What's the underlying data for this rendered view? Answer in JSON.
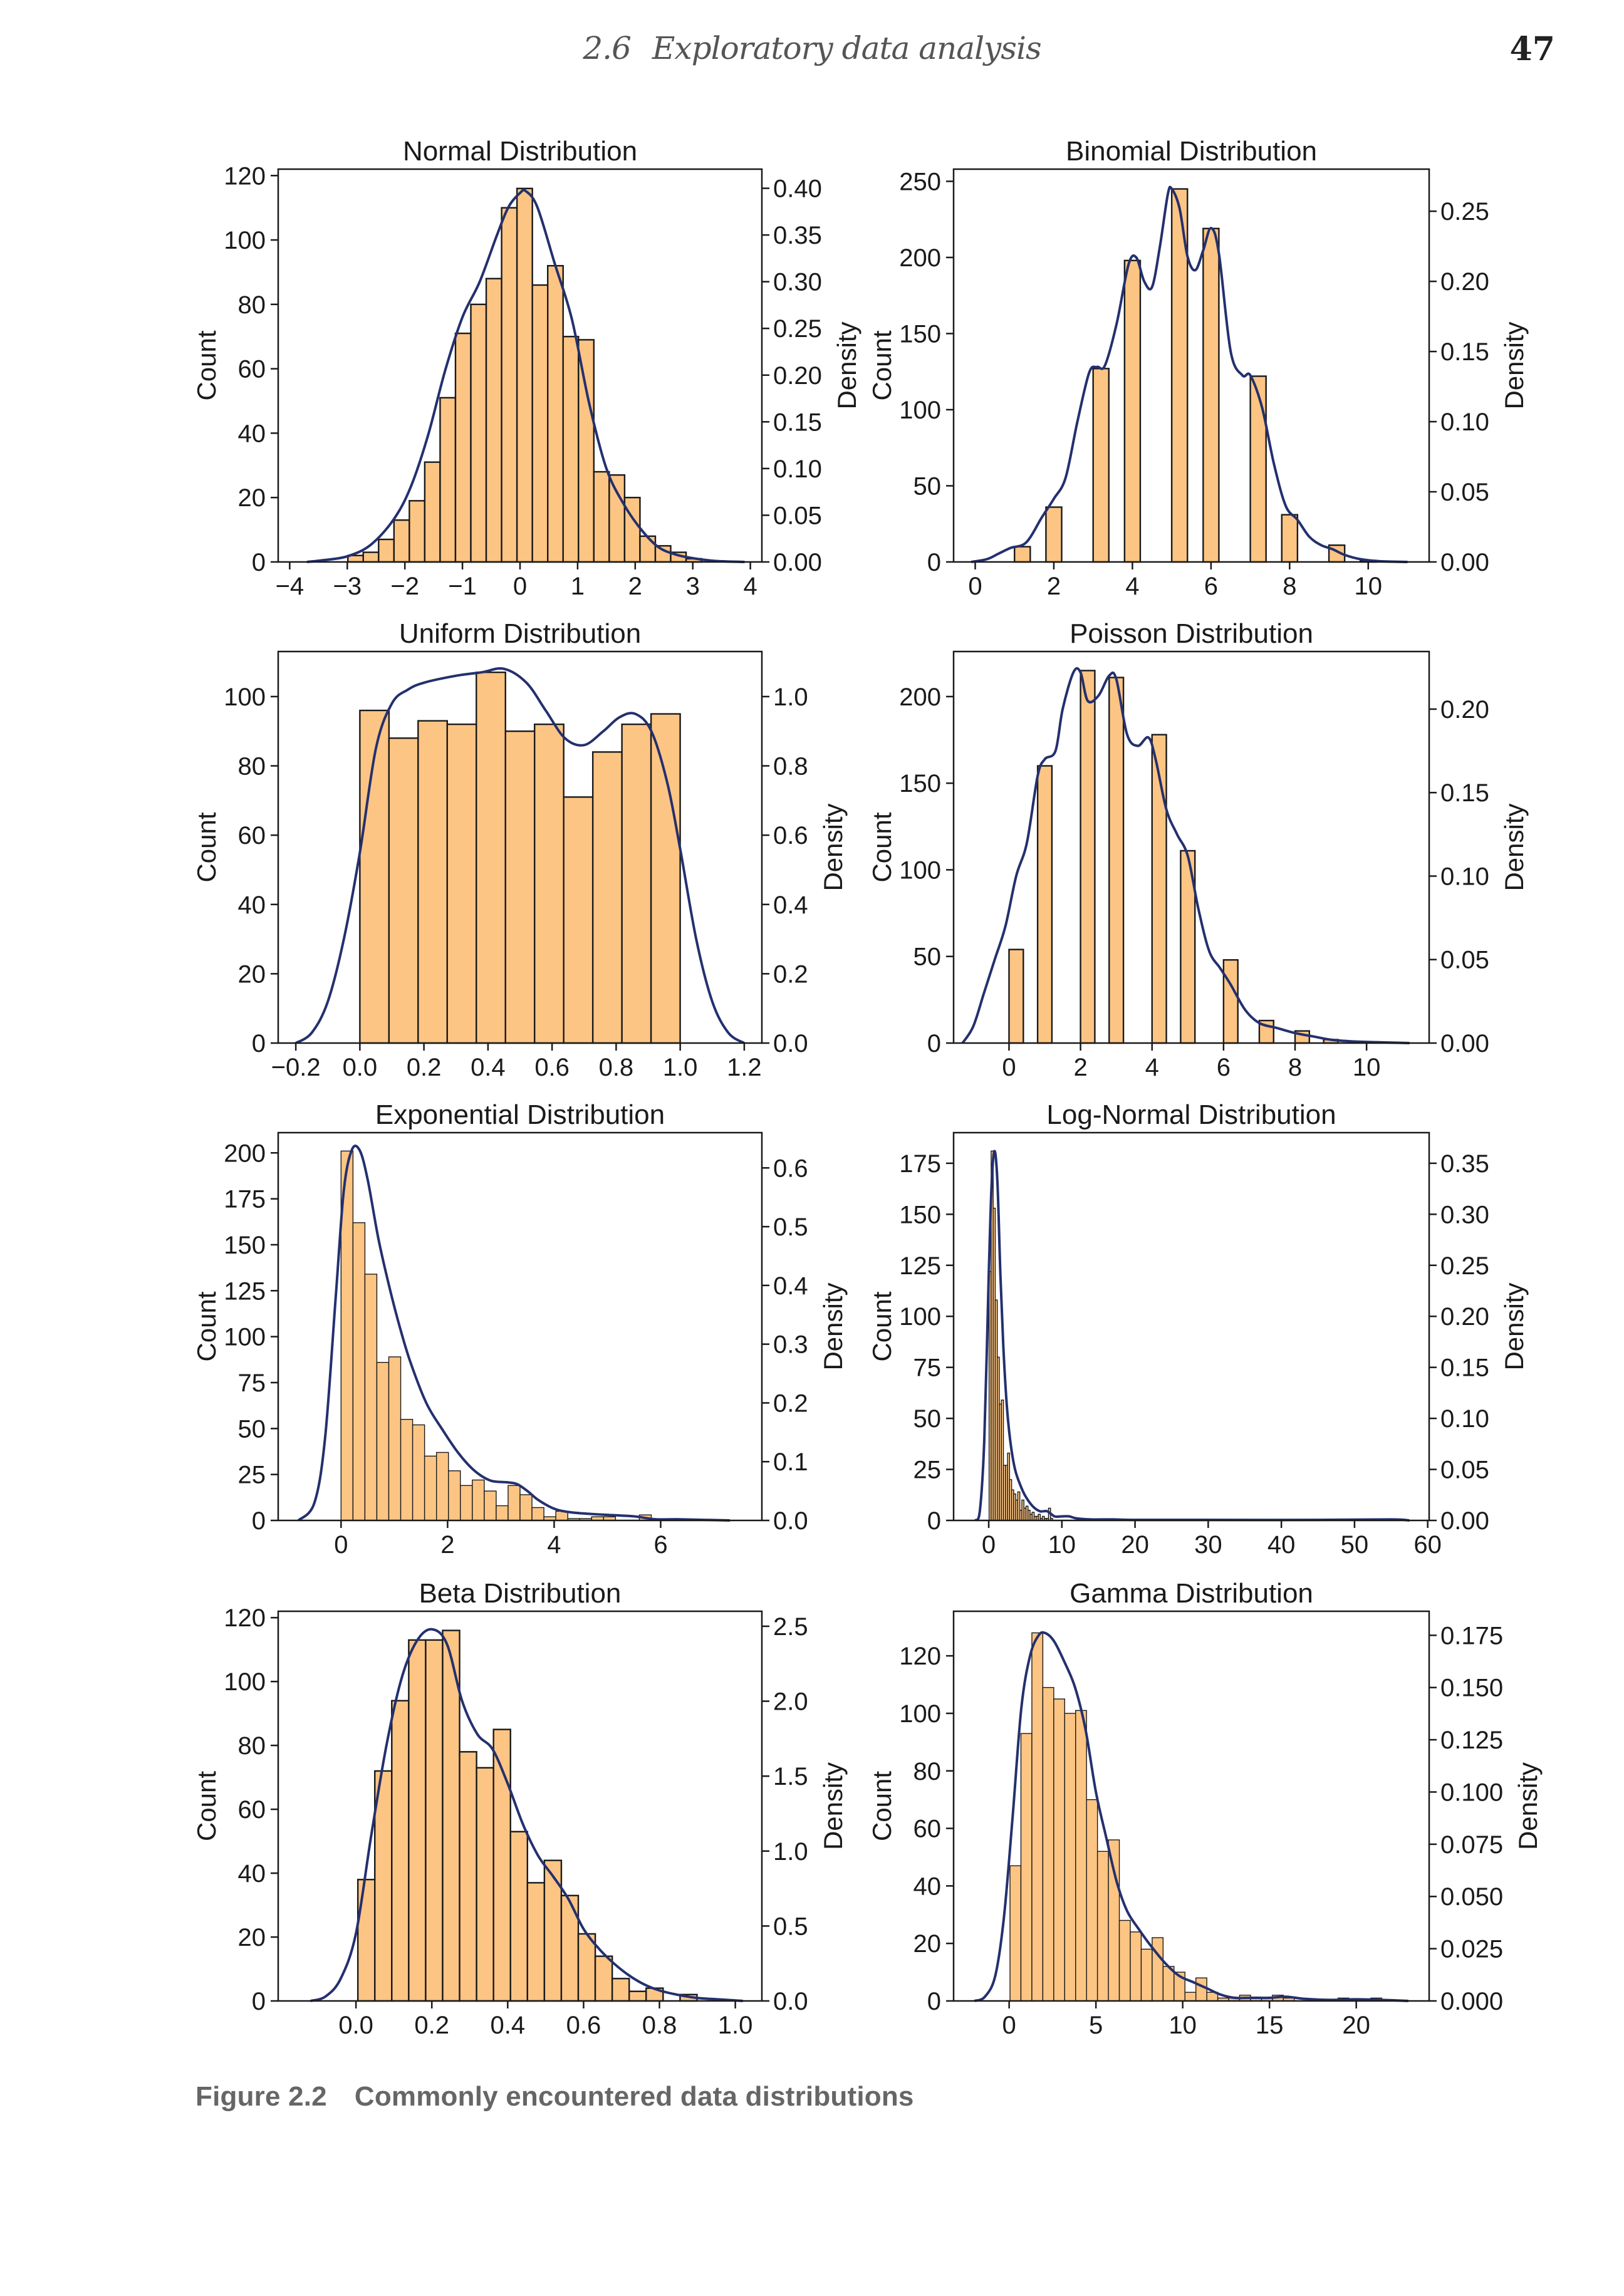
{
  "header": {
    "section_number": "2.6",
    "section_title": "Exploratory data analysis",
    "page_number": "47"
  },
  "caption": {
    "figure_label": "Figure 2.2",
    "text": "Commonly encountered data distributions"
  },
  "colors": {
    "bar_fill": "#fdc584",
    "bar_edge": "#1a1a1a",
    "kde_line": "#24306e"
  },
  "chart_data": [
    {
      "type": "bar",
      "title": "Normal Distribution",
      "xlabel": "",
      "ylabel": "Count",
      "y2label": "Density",
      "xlim": [
        -4.2,
        4.2
      ],
      "ylim": [
        0,
        122
      ],
      "y2lim": [
        0,
        0.4205
      ],
      "xticks": [
        -4,
        -3,
        -2,
        -1,
        0,
        1,
        2,
        3,
        4
      ],
      "xticklabels": [
        "−4",
        "−3",
        "−2",
        "−1",
        "0",
        "1",
        "2",
        "3",
        "4"
      ],
      "yticks": [
        0,
        20,
        40,
        60,
        80,
        100,
        120
      ],
      "y2ticks": [
        0.0,
        0.05,
        0.1,
        0.15,
        0.2,
        0.25,
        0.3,
        0.35,
        0.4
      ],
      "y2ticklabels": [
        "0.00",
        "0.05",
        "0.10",
        "0.15",
        "0.20",
        "0.25",
        "0.30",
        "0.35",
        "0.40"
      ],
      "bin_start": -2.99,
      "bin_width": 0.267,
      "counts": [
        2,
        3,
        7,
        13,
        19,
        31,
        51,
        71,
        80,
        88,
        110,
        116,
        86,
        92,
        70,
        69,
        28,
        27,
        20,
        8,
        5,
        3,
        1
      ],
      "kde": {
        "x": [
          -3.7,
          -3.4,
          -3.0,
          -2.6,
          -2.2,
          -1.9,
          -1.6,
          -1.3,
          -1.0,
          -0.7,
          -0.4,
          -0.2,
          0.0,
          0.1,
          0.3,
          0.6,
          0.9,
          1.2,
          1.5,
          1.8,
          2.1,
          2.4,
          2.7,
          3.0,
          3.4,
          3.9
        ],
        "y": [
          0.0,
          0.002,
          0.006,
          0.018,
          0.045,
          0.08,
          0.135,
          0.205,
          0.262,
          0.3,
          0.35,
          0.38,
          0.395,
          0.397,
          0.38,
          0.32,
          0.26,
          0.17,
          0.1,
          0.062,
          0.035,
          0.016,
          0.008,
          0.004,
          0.001,
          0.0
        ]
      }
    },
    {
      "type": "bar",
      "title": "Binomial Distribution",
      "xlabel": "",
      "ylabel": "Count",
      "y2label": "Density",
      "xlim": [
        -0.55,
        11.55
      ],
      "ylim": [
        0,
        258
      ],
      "y2lim": [
        0,
        0.28
      ],
      "xticks": [
        0,
        2,
        4,
        6,
        8,
        10
      ],
      "xticklabels": [
        "0",
        "2",
        "4",
        "6",
        "8",
        "10"
      ],
      "yticks": [
        0,
        50,
        100,
        150,
        200,
        250
      ],
      "y2ticks": [
        0.0,
        0.05,
        0.1,
        0.15,
        0.2,
        0.25
      ],
      "y2ticklabels": [
        "0.00",
        "0.05",
        "0.10",
        "0.15",
        "0.20",
        "0.25"
      ],
      "bin_width": 0.4,
      "bins": [
        {
          "x": 1.0,
          "count": 10
        },
        {
          "x": 1.8,
          "count": 36
        },
        {
          "x": 3.0,
          "count": 127
        },
        {
          "x": 3.8,
          "count": 198
        },
        {
          "x": 5.0,
          "count": 245
        },
        {
          "x": 5.8,
          "count": 219
        },
        {
          "x": 7.0,
          "count": 122
        },
        {
          "x": 7.8,
          "count": 31
        },
        {
          "x": 9.0,
          "count": 11
        },
        {
          "x": 9.8,
          "count": 1
        }
      ],
      "kde": {
        "x": [
          -0.1,
          0.3,
          0.6,
          0.9,
          1.3,
          1.7,
          2.0,
          2.3,
          2.6,
          2.9,
          3.1,
          3.3,
          3.6,
          3.9,
          4.1,
          4.3,
          4.5,
          4.7,
          4.9,
          5.0,
          5.2,
          5.4,
          5.6,
          5.8,
          6.0,
          6.2,
          6.5,
          6.8,
          7.0,
          7.3,
          7.6,
          7.9,
          8.2,
          8.5,
          8.8,
          9.1,
          9.4,
          9.8,
          10.3,
          11.0
        ],
        "y": [
          0.0,
          0.002,
          0.006,
          0.01,
          0.014,
          0.032,
          0.045,
          0.06,
          0.1,
          0.135,
          0.139,
          0.14,
          0.17,
          0.212,
          0.217,
          0.2,
          0.196,
          0.225,
          0.262,
          0.266,
          0.252,
          0.218,
          0.208,
          0.222,
          0.238,
          0.22,
          0.15,
          0.133,
          0.133,
          0.11,
          0.07,
          0.04,
          0.03,
          0.018,
          0.012,
          0.009,
          0.005,
          0.002,
          0.0005,
          0.0
        ]
      }
    },
    {
      "type": "bar",
      "title": "Uniform Distribution",
      "xlabel": "",
      "ylabel": "Count",
      "y2label": "Density",
      "xlim": [
        -0.255,
        1.255
      ],
      "ylim": [
        0,
        113
      ],
      "y2lim": [
        0,
        1.13
      ],
      "xticks": [
        -0.2,
        0.0,
        0.2,
        0.4,
        0.6,
        0.8,
        1.0,
        1.2
      ],
      "xticklabels": [
        "−0.2",
        "0.0",
        "0.2",
        "0.4",
        "0.6",
        "0.8",
        "1.0",
        "1.2"
      ],
      "yticks": [
        0,
        20,
        40,
        60,
        80,
        100
      ],
      "y2ticks": [
        0.0,
        0.2,
        0.4,
        0.6,
        0.8,
        1.0
      ],
      "y2ticklabels": [
        "0.0",
        "0.2",
        "0.4",
        "0.6",
        "0.8",
        "1.0"
      ],
      "bin_start": 0.0,
      "bin_width": 0.0909,
      "counts": [
        96,
        88,
        93,
        92,
        107,
        90,
        92,
        71,
        84,
        92,
        95
      ],
      "kde": {
        "x": [
          -0.2,
          -0.15,
          -0.1,
          -0.05,
          0.0,
          0.05,
          0.1,
          0.15,
          0.2,
          0.3,
          0.38,
          0.45,
          0.52,
          0.58,
          0.64,
          0.7,
          0.76,
          0.81,
          0.86,
          0.91,
          0.96,
          1.0,
          1.05,
          1.1,
          1.15,
          1.2
        ],
        "y": [
          0.0,
          0.03,
          0.12,
          0.3,
          0.55,
          0.85,
          0.98,
          1.02,
          1.04,
          1.06,
          1.07,
          1.08,
          1.04,
          0.96,
          0.88,
          0.86,
          0.9,
          0.94,
          0.95,
          0.9,
          0.75,
          0.56,
          0.3,
          0.12,
          0.03,
          0.0
        ]
      }
    },
    {
      "type": "bar",
      "title": "Poisson Distribution",
      "xlabel": "",
      "ylabel": "Count",
      "y2label": "Density",
      "xlim": [
        -1.55,
        11.75
      ],
      "ylim": [
        0,
        226
      ],
      "y2lim": [
        0,
        0.2345
      ],
      "xticks": [
        0,
        2,
        4,
        6,
        8,
        10
      ],
      "xticklabels": [
        "0",
        "2",
        "4",
        "6",
        "8",
        "10"
      ],
      "yticks": [
        0,
        50,
        100,
        150,
        200
      ],
      "y2ticks": [
        0.0,
        0.05,
        0.1,
        0.15,
        0.2
      ],
      "y2ticklabels": [
        "0.00",
        "0.05",
        "0.10",
        "0.15",
        "0.20"
      ],
      "bin_width": 0.4,
      "bins": [
        {
          "x": 0.0,
          "count": 54
        },
        {
          "x": 0.8,
          "count": 160
        },
        {
          "x": 2.0,
          "count": 215
        },
        {
          "x": 2.8,
          "count": 211
        },
        {
          "x": 4.0,
          "count": 178
        },
        {
          "x": 4.8,
          "count": 111
        },
        {
          "x": 6.0,
          "count": 48
        },
        {
          "x": 7.0,
          "count": 13
        },
        {
          "x": 8.0,
          "count": 7
        },
        {
          "x": 8.8,
          "count": 2
        }
      ],
      "kde": {
        "x": [
          -1.3,
          -1.0,
          -0.7,
          -0.4,
          -0.1,
          0.2,
          0.5,
          0.8,
          1.0,
          1.3,
          1.5,
          1.8,
          2.0,
          2.2,
          2.5,
          2.8,
          3.0,
          3.3,
          3.6,
          3.9,
          4.1,
          4.4,
          4.7,
          5.0,
          5.3,
          5.6,
          5.9,
          6.2,
          6.6,
          7.0,
          7.5,
          8.0,
          8.5,
          9.0,
          9.6,
          10.3,
          11.2
        ],
        "y": [
          0.0,
          0.01,
          0.03,
          0.05,
          0.07,
          0.1,
          0.12,
          0.16,
          0.17,
          0.175,
          0.2,
          0.222,
          0.222,
          0.205,
          0.208,
          0.22,
          0.218,
          0.185,
          0.178,
          0.183,
          0.17,
          0.14,
          0.125,
          0.112,
          0.08,
          0.055,
          0.045,
          0.035,
          0.02,
          0.012,
          0.009,
          0.006,
          0.004,
          0.002,
          0.001,
          0.0005,
          0.0
        ]
      }
    },
    {
      "type": "bar",
      "title": "Exponential Distribution",
      "xlabel": "",
      "ylabel": "Count",
      "y2label": "Density",
      "xlim": [
        -1.18,
        7.9
      ],
      "ylim": [
        0,
        211
      ],
      "y2lim": [
        0,
        0.66
      ],
      "xticks": [
        0,
        2,
        4,
        6
      ],
      "xticklabels": [
        "0",
        "2",
        "4",
        "6"
      ],
      "yticks": [
        0,
        25,
        50,
        75,
        100,
        125,
        150,
        175,
        200
      ],
      "y2ticks": [
        0.0,
        0.1,
        0.2,
        0.3,
        0.4,
        0.5,
        0.6
      ],
      "y2ticklabels": [
        "0.0",
        "0.1",
        "0.2",
        "0.3",
        "0.4",
        "0.5",
        "0.6"
      ],
      "bin_start": 0.0,
      "bin_width": 0.224,
      "counts": [
        201,
        162,
        134,
        86,
        89,
        55,
        52,
        35,
        37,
        27,
        19,
        22,
        16,
        8,
        19,
        14,
        7,
        2,
        5,
        1,
        1,
        2,
        2,
        0,
        0,
        3,
        0,
        0,
        0,
        0,
        0,
        0,
        0,
        0,
        0,
        0
      ],
      "kde": {
        "x": [
          -0.8,
          -0.5,
          -0.3,
          -0.1,
          0.05,
          0.2,
          0.35,
          0.5,
          0.7,
          0.9,
          1.1,
          1.3,
          1.6,
          1.9,
          2.2,
          2.5,
          2.8,
          3.1,
          3.3,
          3.5,
          3.7,
          4.0,
          4.3,
          4.7,
          5.1,
          5.5,
          5.9,
          6.3,
          6.8,
          7.3
        ],
        "y": [
          0.0,
          0.03,
          0.14,
          0.38,
          0.56,
          0.63,
          0.63,
          0.58,
          0.48,
          0.4,
          0.33,
          0.27,
          0.2,
          0.155,
          0.115,
          0.085,
          0.068,
          0.065,
          0.062,
          0.05,
          0.035,
          0.02,
          0.014,
          0.011,
          0.009,
          0.007,
          0.002,
          0.002,
          0.001,
          0.0
        ]
      }
    },
    {
      "type": "bar",
      "title": "Log-Normal Distribution",
      "xlabel": "",
      "ylabel": "Count",
      "y2label": "Density",
      "xlim": [
        -4.8,
        60.2
      ],
      "ylim": [
        0,
        190
      ],
      "y2lim": [
        0,
        0.38
      ],
      "xticks": [
        0,
        10,
        20,
        30,
        40,
        50,
        60
      ],
      "xticklabels": [
        "0",
        "10",
        "20",
        "30",
        "40",
        "50",
        "60"
      ],
      "yticks": [
        0,
        25,
        50,
        75,
        100,
        125,
        150,
        175
      ],
      "y2ticks": [
        0.0,
        0.05,
        0.1,
        0.15,
        0.2,
        0.25,
        0.3,
        0.35
      ],
      "y2ticklabels": [
        "0.00",
        "0.05",
        "0.10",
        "0.15",
        "0.20",
        "0.25",
        "0.30",
        "0.35"
      ],
      "bin_start": 0.05,
      "bin_width": 0.28,
      "counts": [
        122,
        181,
        153,
        108,
        80,
        57,
        59,
        27,
        27,
        33,
        20,
        15,
        13,
        10,
        14,
        5,
        10,
        6,
        7,
        5,
        3,
        4,
        2,
        2,
        3,
        1,
        2,
        1,
        1,
        6,
        1
      ],
      "kde": {
        "x": [
          -1.8,
          -1.2,
          -0.6,
          0.0,
          0.4,
          0.8,
          1.2,
          1.6,
          2.0,
          2.5,
          3.0,
          3.6,
          4.3,
          5.0,
          6.0,
          7.0,
          8.0,
          9.0,
          10.0,
          11.0,
          12.0,
          14.0,
          17.0,
          20.0,
          30.0,
          45.0,
          55.0,
          57.5
        ],
        "y": [
          0.0,
          0.01,
          0.08,
          0.24,
          0.33,
          0.362,
          0.33,
          0.24,
          0.17,
          0.11,
          0.075,
          0.05,
          0.035,
          0.024,
          0.014,
          0.009,
          0.009,
          0.004,
          0.004,
          0.004,
          0.002,
          0.001,
          0.001,
          0.0005,
          0.0005,
          0.0005,
          0.001,
          0.0
        ]
      }
    },
    {
      "type": "bar",
      "title": "Beta Distribution",
      "xlabel": "",
      "ylabel": "Count",
      "y2label": "Density",
      "xlim": [
        -0.205,
        1.07
      ],
      "ylim": [
        0,
        122
      ],
      "y2lim": [
        0,
        2.6
      ],
      "xticks": [
        0.0,
        0.2,
        0.4,
        0.6,
        0.8,
        1.0
      ],
      "xticklabels": [
        "0.0",
        "0.2",
        "0.4",
        "0.6",
        "0.8",
        "1.0"
      ],
      "yticks": [
        0,
        20,
        40,
        60,
        80,
        100,
        120
      ],
      "y2ticks": [
        0.0,
        0.5,
        1.0,
        1.5,
        2.0,
        2.5
      ],
      "y2ticklabels": [
        "0.0",
        "0.5",
        "1.0",
        "1.5",
        "2.0",
        "2.5"
      ],
      "bin_start": 0.005,
      "bin_width": 0.0447,
      "counts": [
        38,
        72,
        94,
        113,
        113,
        116,
        78,
        73,
        85,
        53,
        37,
        44,
        33,
        21,
        14,
        7,
        3,
        4,
        0,
        2
      ],
      "kde": {
        "x": [
          -0.12,
          -0.08,
          -0.04,
          0.0,
          0.04,
          0.08,
          0.12,
          0.16,
          0.2,
          0.24,
          0.28,
          0.32,
          0.36,
          0.4,
          0.44,
          0.48,
          0.52,
          0.56,
          0.6,
          0.64,
          0.68,
          0.72,
          0.76,
          0.8,
          0.85,
          0.9,
          0.96,
          1.02
        ],
        "y": [
          0.0,
          0.03,
          0.15,
          0.45,
          1.1,
          1.7,
          2.15,
          2.4,
          2.48,
          2.38,
          2.0,
          1.78,
          1.68,
          1.45,
          1.18,
          0.97,
          0.83,
          0.68,
          0.48,
          0.35,
          0.25,
          0.17,
          0.11,
          0.07,
          0.04,
          0.02,
          0.01,
          0.0
        ]
      }
    },
    {
      "type": "bar",
      "title": "Gamma Distribution",
      "xlabel": "",
      "ylabel": "Count",
      "y2label": "Density",
      "xlim": [
        -3.2,
        24.2
      ],
      "ylim": [
        0,
        135.5
      ],
      "y2lim": [
        0,
        0.1865
      ],
      "xticks": [
        0,
        5,
        10,
        15,
        20
      ],
      "xticklabels": [
        "0",
        "5",
        "10",
        "15",
        "20"
      ],
      "yticks": [
        0,
        20,
        40,
        60,
        80,
        100,
        120
      ],
      "y2ticks": [
        0.0,
        0.025,
        0.05,
        0.075,
        0.1,
        0.125,
        0.15,
        0.175
      ],
      "y2ticklabels": [
        "0.000",
        "0.025",
        "0.050",
        "0.075",
        "0.100",
        "0.125",
        "0.150",
        "0.175"
      ],
      "bin_start": 0.05,
      "bin_width": 0.63,
      "counts": [
        47,
        93,
        128,
        109,
        105,
        100,
        101,
        70,
        52,
        56,
        28,
        24,
        18,
        22,
        12,
        10,
        3,
        8,
        3,
        1,
        1,
        2,
        1,
        1,
        2,
        1,
        0,
        0,
        0,
        0,
        1,
        0,
        0,
        1
      ],
      "kde": {
        "x": [
          -2.0,
          -1.4,
          -0.8,
          -0.3,
          0.2,
          0.7,
          1.2,
          1.7,
          2.1,
          2.6,
          3.2,
          3.8,
          4.4,
          5.0,
          5.6,
          6.2,
          6.8,
          7.5,
          8.2,
          9.0,
          9.8,
          10.6,
          11.4,
          12.2,
          13.0,
          14.0,
          15.0,
          16.0,
          17.0,
          18.5,
          20.0,
          21.5,
          23.0
        ],
        "y": [
          0.0,
          0.002,
          0.012,
          0.04,
          0.088,
          0.14,
          0.165,
          0.175,
          0.176,
          0.172,
          0.162,
          0.15,
          0.13,
          0.1,
          0.078,
          0.057,
          0.043,
          0.034,
          0.026,
          0.018,
          0.012,
          0.009,
          0.006,
          0.003,
          0.0015,
          0.0015,
          0.0015,
          0.002,
          0.001,
          0.0005,
          0.0008,
          0.0005,
          0.0
        ]
      }
    }
  ]
}
